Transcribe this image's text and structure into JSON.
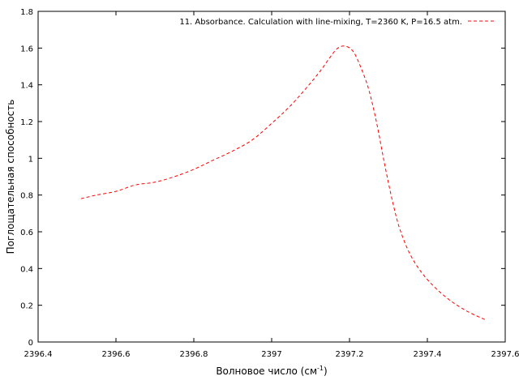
{
  "chart_data": {
    "type": "line",
    "title": "",
    "xlabel": "Волновое число (см",
    "xlabel_sup": "-1",
    "xlabel_close": ")",
    "ylabel": "Поглощательная способность",
    "xlim": [
      2396.4,
      2397.6
    ],
    "ylim": [
      0,
      1.8
    ],
    "xticks": [
      2396.4,
      2396.6,
      2396.8,
      2397,
      2397.2,
      2397.4,
      2397.6
    ],
    "xtick_labels": [
      "2396.4",
      "2396.6",
      "2396.8",
      "2397",
      "2397.2",
      "2397.4",
      "2397.6"
    ],
    "yticks": [
      0,
      0.2,
      0.4,
      0.6,
      0.8,
      1,
      1.2,
      1.4,
      1.6,
      1.8
    ],
    "ytick_labels": [
      "0",
      "0.2",
      "0.4",
      "0.6",
      "0.8",
      "1",
      "1.2",
      "1.4",
      "1.6",
      "1.8"
    ],
    "grid": false,
    "legend_position": "top-right",
    "series": [
      {
        "name": "11. Absorbance. Calculation with line-mixing, T=2360 K, P=16.5 atm.",
        "color": "#ff0000",
        "line_style": "dashed",
        "x": [
          2396.51,
          2396.55,
          2396.6,
          2396.65,
          2396.7,
          2396.75,
          2396.8,
          2396.85,
          2396.9,
          2396.95,
          2397.0,
          2397.05,
          2397.1,
          2397.13,
          2397.15,
          2397.17,
          2397.19,
          2397.21,
          2397.23,
          2397.25,
          2397.27,
          2397.29,
          2397.31,
          2397.33,
          2397.36,
          2397.4,
          2397.45,
          2397.5,
          2397.55
        ],
        "y": [
          0.78,
          0.8,
          0.82,
          0.855,
          0.87,
          0.9,
          0.94,
          0.99,
          1.04,
          1.1,
          1.19,
          1.29,
          1.41,
          1.49,
          1.55,
          1.6,
          1.61,
          1.58,
          1.49,
          1.37,
          1.19,
          0.97,
          0.77,
          0.61,
          0.46,
          0.34,
          0.24,
          0.17,
          0.12
        ]
      }
    ]
  }
}
